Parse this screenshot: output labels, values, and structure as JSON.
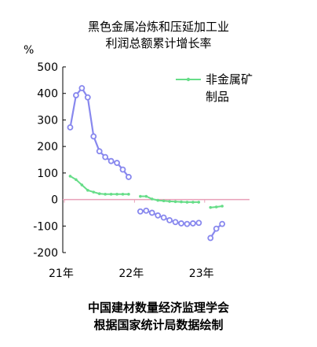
{
  "chart_data": {
    "type": "line",
    "title_line1": "黑色金属冶炼和压延加工业",
    "title_line2": "利润总额累计增长率",
    "ylabel": "%",
    "ylim": [
      -200,
      500
    ],
    "yticks": [
      "500",
      "400",
      "300",
      "200",
      "100",
      "0",
      "-100",
      "-200"
    ],
    "xtick_labels": [
      "21年",
      "22年",
      "23年"
    ],
    "legend_line1": "非金属矿",
    "legend_line2": "制品",
    "series": [
      {
        "name": "非金属矿制品",
        "color": "#66dd88",
        "segments": [
          {
            "x": [
              "2021-02",
              "2021-03",
              "2021-04",
              "2021-05",
              "2021-06",
              "2021-07",
              "2021-08",
              "2021-09",
              "2021-10",
              "2021-11",
              "2021-12"
            ],
            "y": [
              88,
              75,
              55,
              35,
              28,
              22,
              20,
              20,
              20,
              20,
              20
            ]
          },
          {
            "x": [
              "2022-02",
              "2022-03",
              "2022-04",
              "2022-05",
              "2022-06",
              "2022-07",
              "2022-08",
              "2022-09",
              "2022-10",
              "2022-11",
              "2022-12"
            ],
            "y": [
              12,
              12,
              2,
              -3,
              -5,
              -7,
              -8,
              -9,
              -10,
              -10,
              -10
            ]
          },
          {
            "x": [
              "2023-02",
              "2023-03",
              "2023-04"
            ],
            "y": [
              -30,
              -28,
              -25
            ]
          }
        ]
      },
      {
        "name": "黑色金属冶炼和压延加工业",
        "color": "#8888ee",
        "segments": [
          {
            "x": [
              "2021-02",
              "2021-03",
              "2021-04",
              "2021-05",
              "2021-06",
              "2021-07",
              "2021-08",
              "2021-09",
              "2021-10",
              "2021-11",
              "2021-12"
            ],
            "y": [
              272,
              393,
              420,
              385,
              238,
              182,
              160,
              145,
              138,
              113,
              85
            ]
          },
          {
            "x": [
              "2022-02",
              "2022-03",
              "2022-04",
              "2022-05",
              "2022-06",
              "2022-07",
              "2022-08",
              "2022-09",
              "2022-10",
              "2022-11",
              "2022-12"
            ],
            "y": [
              -45,
              -42,
              -50,
              -60,
              -68,
              -78,
              -85,
              -90,
              -92,
              -90,
              -88
            ]
          },
          {
            "x": [
              "2023-02",
              "2023-03",
              "2023-04"
            ],
            "y": [
              -145,
              -110,
              -92
            ]
          }
        ]
      }
    ],
    "footer_line1": "中国建材数量经济监理学会",
    "footer_line2": "根据国家统计局数据绘制"
  }
}
